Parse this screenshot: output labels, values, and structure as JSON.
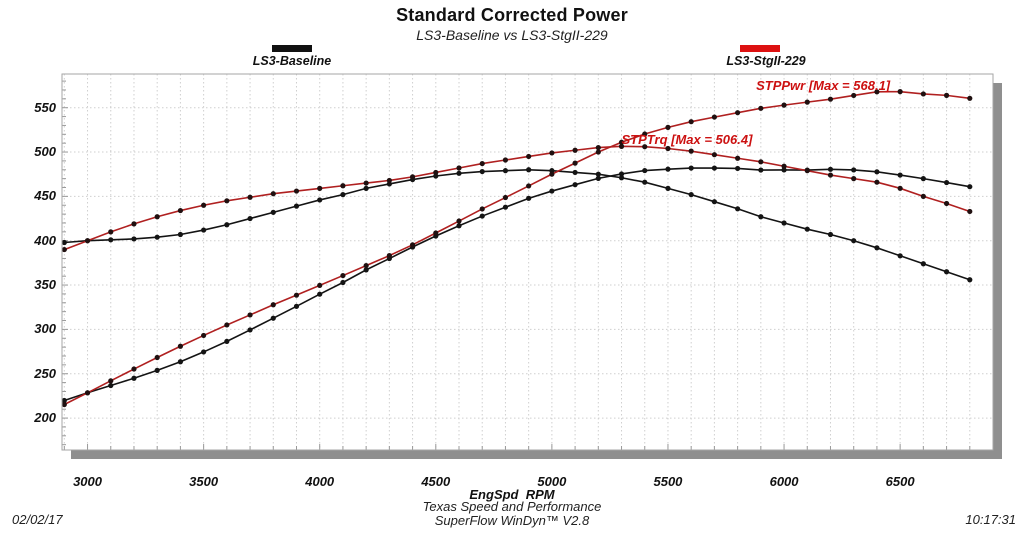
{
  "page": {
    "title": "Standard Corrected Power",
    "subtitle": "LS3-Baseline vs LS3-StgII-229",
    "x_axis_title": "EngSpd  RPM",
    "footer_line1": "Texas Speed and Performance",
    "footer_line2": "SuperFlow WinDyn™ V2.8",
    "date": "02/02/17",
    "time": "10:17:31"
  },
  "legend": [
    {
      "label": "LS3-Baseline",
      "color": "#111111"
    },
    {
      "label": "LS3-StgII-229",
      "color": "#dd1111"
    }
  ],
  "annotations": [
    {
      "text": "STPPwr [Max = 568.1]",
      "series": "stg2_pwr",
      "anchor": "right",
      "color": "#cc1111"
    },
    {
      "text": "STPTrq [Max = 506.4]",
      "series": "stg2_trq",
      "anchor": "left",
      "color": "#cc1111"
    }
  ],
  "style": {
    "grid_color": "#cfcfcf",
    "shadow_color": "#8f8f8f",
    "border_color": "#a6a6a6",
    "tick_color": "#999999",
    "plot_bg": "#ffffff"
  },
  "chart_data": {
    "type": "line",
    "title": "Standard Corrected Power",
    "subtitle": "LS3-Baseline vs LS3-StgII-229",
    "xlabel": "EngSpd RPM",
    "ylabel": "",
    "grid": "dotted",
    "legend_position": "top",
    "xlim": [
      2890,
      6900
    ],
    "ylim": [
      164,
      588
    ],
    "x_ticks": [
      3000,
      3500,
      4000,
      4500,
      5000,
      5500,
      6000,
      6500
    ],
    "y_ticks": [
      550,
      500,
      450,
      400,
      350,
      300,
      250,
      200
    ],
    "x": [
      2900,
      3000,
      3100,
      3200,
      3300,
      3400,
      3500,
      3600,
      3700,
      3800,
      3900,
      4000,
      4100,
      4200,
      4300,
      4400,
      4500,
      4600,
      4700,
      4800,
      4900,
      5000,
      5100,
      5200,
      5300,
      5400,
      5500,
      5600,
      5700,
      5800,
      5900,
      6000,
      6100,
      6200,
      6300,
      6400,
      6500,
      6600,
      6700,
      6800
    ],
    "series": [
      {
        "id": "base_trq",
        "name": "LS3-Baseline STPTrq",
        "color": "#141414",
        "dot": "#141414",
        "values": [
          398,
          400,
          401,
          402,
          404,
          407,
          412,
          418,
          425,
          432,
          439,
          446,
          452,
          459,
          464,
          469,
          473,
          476,
          478,
          479,
          480,
          479,
          477,
          475,
          471,
          466,
          459,
          452,
          444,
          436,
          427,
          420,
          413,
          407,
          400,
          392,
          383,
          374,
          365,
          356
        ]
      },
      {
        "id": "base_pwr",
        "name": "LS3-Baseline STPPwr",
        "color": "#141414",
        "dot": "#141414",
        "values": [
          219.8,
          228.5,
          236.7,
          244.9,
          253.8,
          263.5,
          274.6,
          286.5,
          299.4,
          312.6,
          326.0,
          339.7,
          352.9,
          367.1,
          379.9,
          392.9,
          405.3,
          416.9,
          427.8,
          437.8,
          447.8,
          456.0,
          463.2,
          470.3,
          475.3,
          479.1,
          480.7,
          481.9,
          481.9,
          481.5,
          479.7,
          479.8,
          479.7,
          480.5,
          479.8,
          477.7,
          474.0,
          470.0,
          465.6,
          460.9
        ]
      },
      {
        "id": "stg2_trq",
        "name": "LS3-StgII-229 STPTrq",
        "color": "#b02020",
        "dot": "#201010",
        "values": [
          390,
          400,
          410,
          419,
          427,
          434,
          440,
          445,
          449,
          453,
          456,
          459,
          462,
          465,
          468,
          472,
          477,
          482,
          487,
          491,
          495,
          499,
          502,
          505,
          506.4,
          506,
          504,
          501,
          497,
          493,
          489,
          484,
          479,
          474,
          470,
          466,
          459.1,
          450,
          442,
          433
        ]
      },
      {
        "id": "stg2_pwr",
        "name": "LS3-StgII-229 STPPwr",
        "color": "#b02020",
        "dot": "#201010",
        "values": [
          215.3,
          228.5,
          242.0,
          255.3,
          268.3,
          281.0,
          293.2,
          305.0,
          316.3,
          327.8,
          338.6,
          349.6,
          360.7,
          371.9,
          383.2,
          395.4,
          408.7,
          422.2,
          435.8,
          448.7,
          461.8,
          475.1,
          487.5,
          500.0,
          511.0,
          520.3,
          527.8,
          534.2,
          539.4,
          544.4,
          549.3,
          552.9,
          556.3,
          559.6,
          563.8,
          567.9,
          568.1,
          565.5,
          563.9,
          560.6
        ]
      }
    ]
  }
}
